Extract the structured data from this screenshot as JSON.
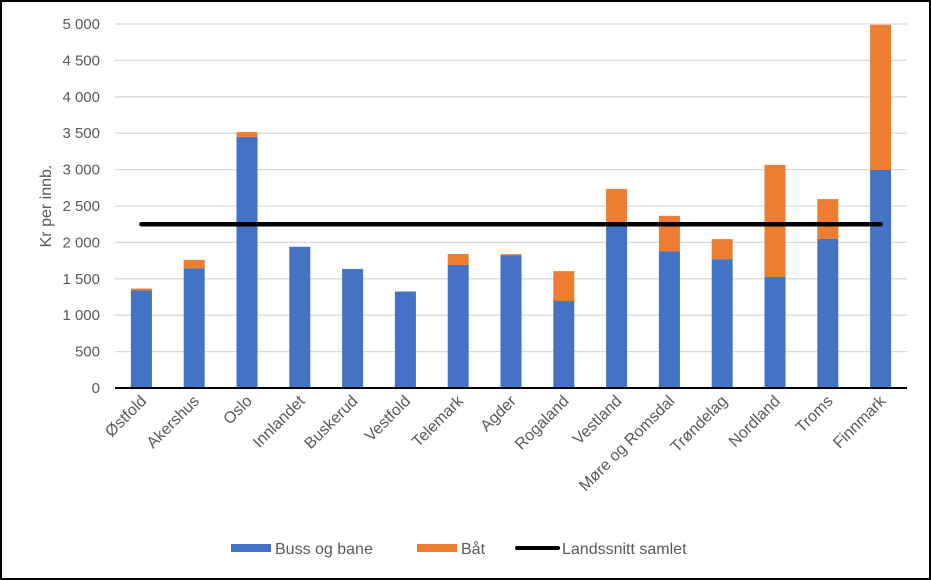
{
  "chart_data": {
    "type": "bar",
    "stacked": true,
    "title": "",
    "xlabel": "",
    "ylabel": "Kr per innb.",
    "ylim": [
      0,
      5000
    ],
    "yticks": [
      0,
      500,
      1000,
      1500,
      2000,
      2500,
      3000,
      3500,
      4000,
      4500,
      5000
    ],
    "ytick_labels": [
      "0",
      "500",
      "1 000",
      "1 500",
      "2 000",
      "2 500",
      "3 000",
      "3 500",
      "4 000",
      "4 500",
      "5 000"
    ],
    "grid": true,
    "legend_position": "bottom",
    "categories": [
      "Østfold",
      "Akershus",
      "Oslo",
      "Innlandet",
      "Buskerud",
      "Vestfold",
      "Telemark",
      "Agder",
      "Rogaland",
      "Vestland",
      "Møre og Romsdal",
      "Trøndelag",
      "Nordland",
      "Troms",
      "Finnmark"
    ],
    "series": [
      {
        "name": "Buss og bane",
        "type": "bar",
        "color": "#4472C4",
        "values": [
          1340,
          1645,
          3450,
          1940,
          1635,
          1325,
          1690,
          1825,
          1195,
          2220,
          1875,
          1770,
          1525,
          2050,
          2995
        ]
      },
      {
        "name": "Båt",
        "type": "bar",
        "color": "#ED7D31",
        "values": [
          25,
          115,
          65,
          0,
          0,
          0,
          150,
          15,
          410,
          515,
          490,
          275,
          1540,
          545,
          1995
        ]
      },
      {
        "name": "Landssnitt samlet",
        "type": "line",
        "color": "#000000",
        "values": [
          2250,
          2250,
          2250,
          2250,
          2250,
          2250,
          2250,
          2250,
          2250,
          2250,
          2250,
          2250,
          2250,
          2250,
          2250
        ]
      }
    ]
  },
  "legend": {
    "items": [
      {
        "label": "Buss og bane",
        "color": "#4472C4"
      },
      {
        "label": "Båt",
        "color": "#ED7D31"
      },
      {
        "label": "Landssnitt samlet",
        "color": "#000000"
      }
    ]
  }
}
